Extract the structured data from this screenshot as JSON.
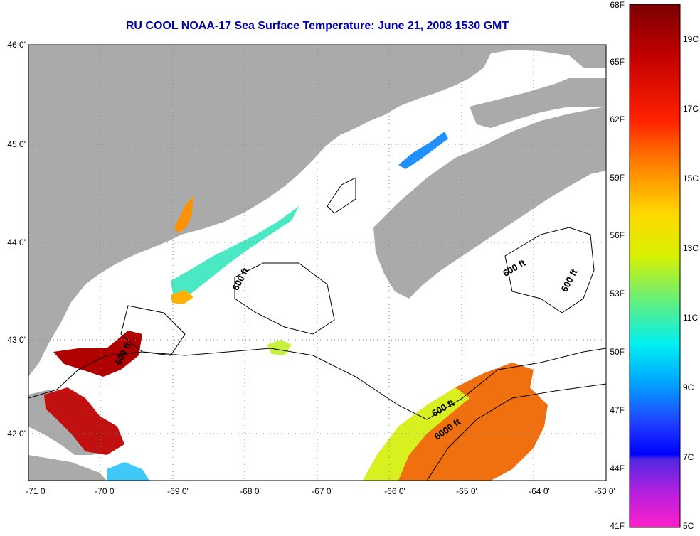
{
  "title": "RU COOL  NOAA-17  Sea Surface Temperature:  June 21, 2008 1530 GMT",
  "map": {
    "lat_labels": [
      "46 0'",
      "45 0'",
      "44 0'",
      "43 0'",
      "42 0'"
    ],
    "lon_labels": [
      "-71 0'",
      "-70 0'",
      "-69 0'",
      "-68 0'",
      "-67 0'",
      "-66 0'",
      "-65 0'",
      "-64 0'",
      "-63 0'"
    ],
    "contour_labels": [
      {
        "text": "600 ft",
        "rot": -62
      },
      {
        "text": "600 ft",
        "rot": -62
      },
      {
        "text": "600 ft",
        "rot": -30
      },
      {
        "text": "600 ft",
        "rot": -62
      },
      {
        "text": "600 ft",
        "rot": -30
      },
      {
        "text": "6000 ft",
        "rot": -35
      }
    ],
    "colors": {
      "land": "#aaaaaa",
      "water": "#ffffff",
      "title": "#0000a8"
    }
  },
  "colorbar": {
    "f_labels": [
      "68F",
      "65F",
      "62F",
      "59F",
      "56F",
      "53F",
      "50F",
      "47F",
      "44F",
      "41F"
    ],
    "c_labels": [
      "19C",
      "17C",
      "15C",
      "13C",
      "11C",
      "9C",
      "7C",
      "5C"
    ]
  }
}
